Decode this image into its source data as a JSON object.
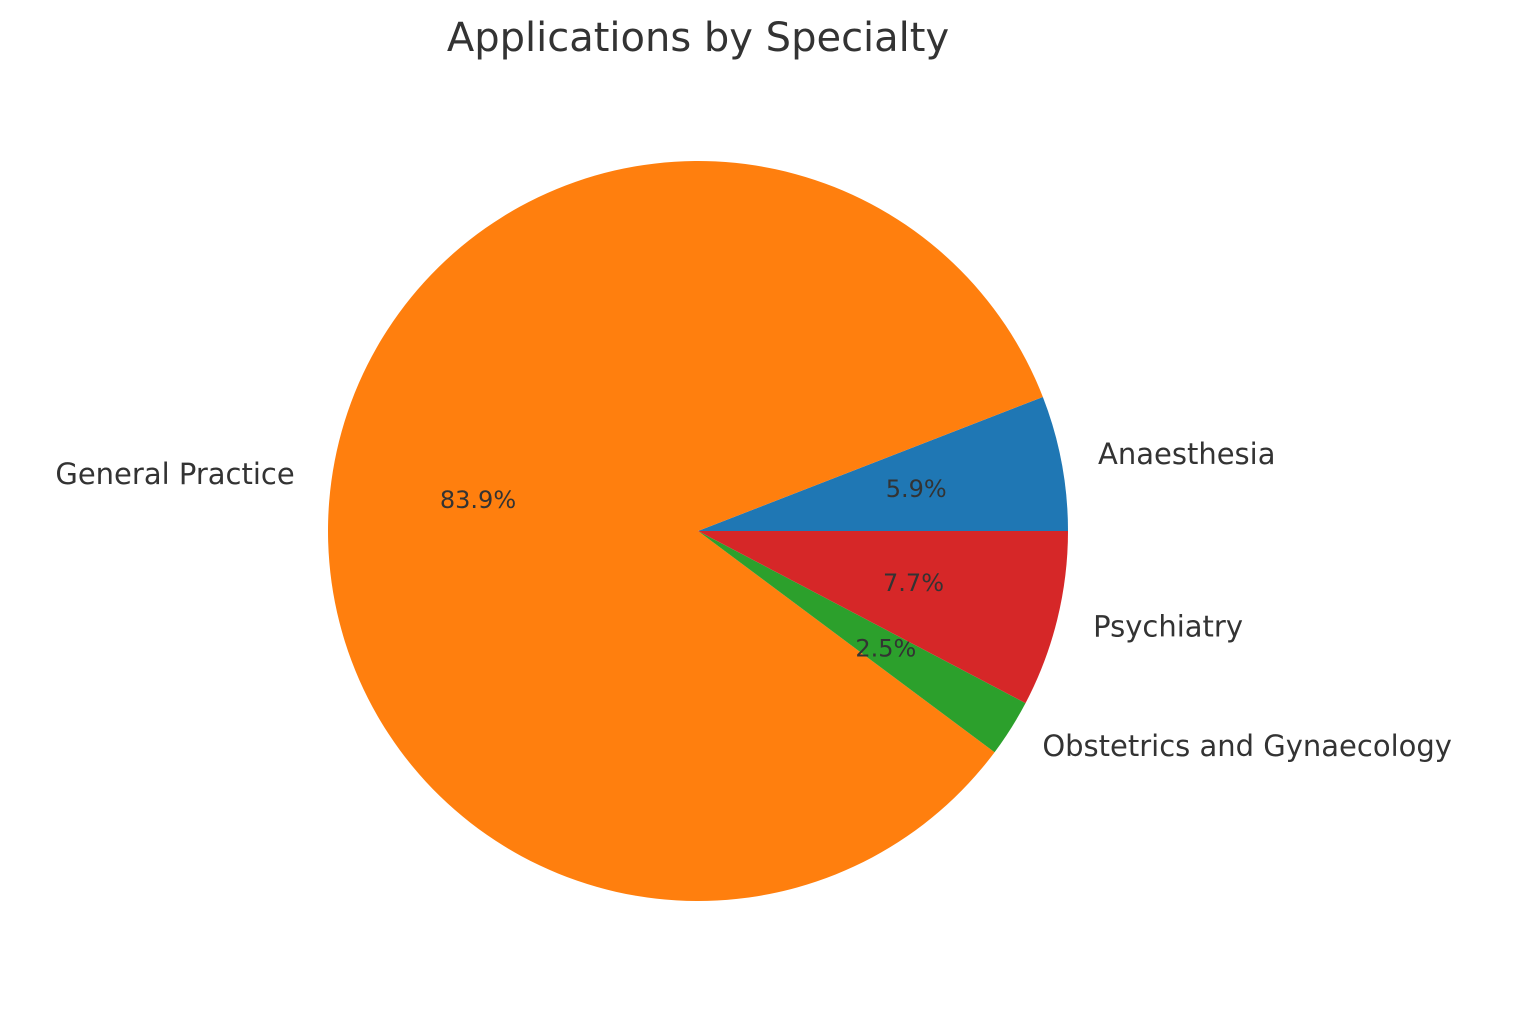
{
  "chart_data": {
    "type": "pie",
    "title": "Applications by Specialty",
    "categories": [
      "Anaesthesia",
      "General Practice",
      "Obstetrics and Gynaecology",
      "Psychiatry"
    ],
    "values": [
      5.9,
      83.9,
      2.5,
      7.7
    ],
    "value_labels": [
      "5.9%",
      "83.9%",
      "2.5%",
      "7.7%"
    ],
    "colors": [
      "#1f77b4",
      "#ff7f0e",
      "#2ca02c",
      "#d62728"
    ]
  }
}
